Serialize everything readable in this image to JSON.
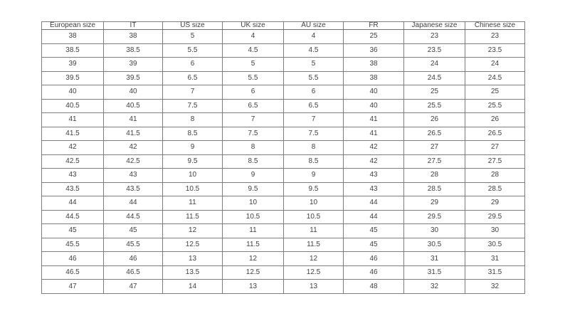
{
  "colors": {
    "background": "#ffffff",
    "border": "#7d7d7d",
    "text": "#3f3f3f"
  },
  "chart_data": {
    "type": "table",
    "columns": [
      "European size",
      "IT",
      "US size",
      "UK size",
      "AU size",
      "FR",
      "Japanese size",
      "Chinese size"
    ],
    "rows": [
      [
        "38",
        "38",
        "5",
        "4",
        "4",
        "25",
        "23",
        "23"
      ],
      [
        "38.5",
        "38.5",
        "5.5",
        "4.5",
        "4.5",
        "36",
        "23.5",
        "23.5"
      ],
      [
        "39",
        "39",
        "6",
        "5",
        "5",
        "38",
        "24",
        "24"
      ],
      [
        "39.5",
        "39.5",
        "6.5",
        "5.5",
        "5.5",
        "38",
        "24.5",
        "24.5"
      ],
      [
        "40",
        "40",
        "7",
        "6",
        "6",
        "40",
        "25",
        "25"
      ],
      [
        "40.5",
        "40.5",
        "7.5",
        "6.5",
        "6.5",
        "40",
        "25.5",
        "25.5"
      ],
      [
        "41",
        "41",
        "8",
        "7",
        "7",
        "41",
        "26",
        "26"
      ],
      [
        "41.5",
        "41.5",
        "8.5",
        "7.5",
        "7.5",
        "41",
        "26.5",
        "26.5"
      ],
      [
        "42",
        "42",
        "9",
        "8",
        "8",
        "42",
        "27",
        "27"
      ],
      [
        "42.5",
        "42.5",
        "9.5",
        "8.5",
        "8.5",
        "42",
        "27.5",
        "27.5"
      ],
      [
        "43",
        "43",
        "10",
        "9",
        "9",
        "43",
        "28",
        "28"
      ],
      [
        "43.5",
        "43.5",
        "10.5",
        "9.5",
        "9.5",
        "43",
        "28.5",
        "28.5"
      ],
      [
        "44",
        "44",
        "11",
        "10",
        "10",
        "44",
        "29",
        "29"
      ],
      [
        "44.5",
        "44.5",
        "11.5",
        "10.5",
        "10.5",
        "44",
        "29.5",
        "29.5"
      ],
      [
        "45",
        "45",
        "12",
        "11",
        "11",
        "45",
        "30",
        "30"
      ],
      [
        "45.5",
        "45.5",
        "12.5",
        "11.5",
        "11.5",
        "45",
        "30.5",
        "30.5"
      ],
      [
        "46",
        "46",
        "13",
        "12",
        "12",
        "46",
        "31",
        "31"
      ],
      [
        "46.5",
        "46.5",
        "13.5",
        "12.5",
        "12.5",
        "46",
        "31.5",
        "31.5"
      ],
      [
        "47",
        "47",
        "14",
        "13",
        "13",
        "48",
        "32",
        "32"
      ]
    ]
  }
}
